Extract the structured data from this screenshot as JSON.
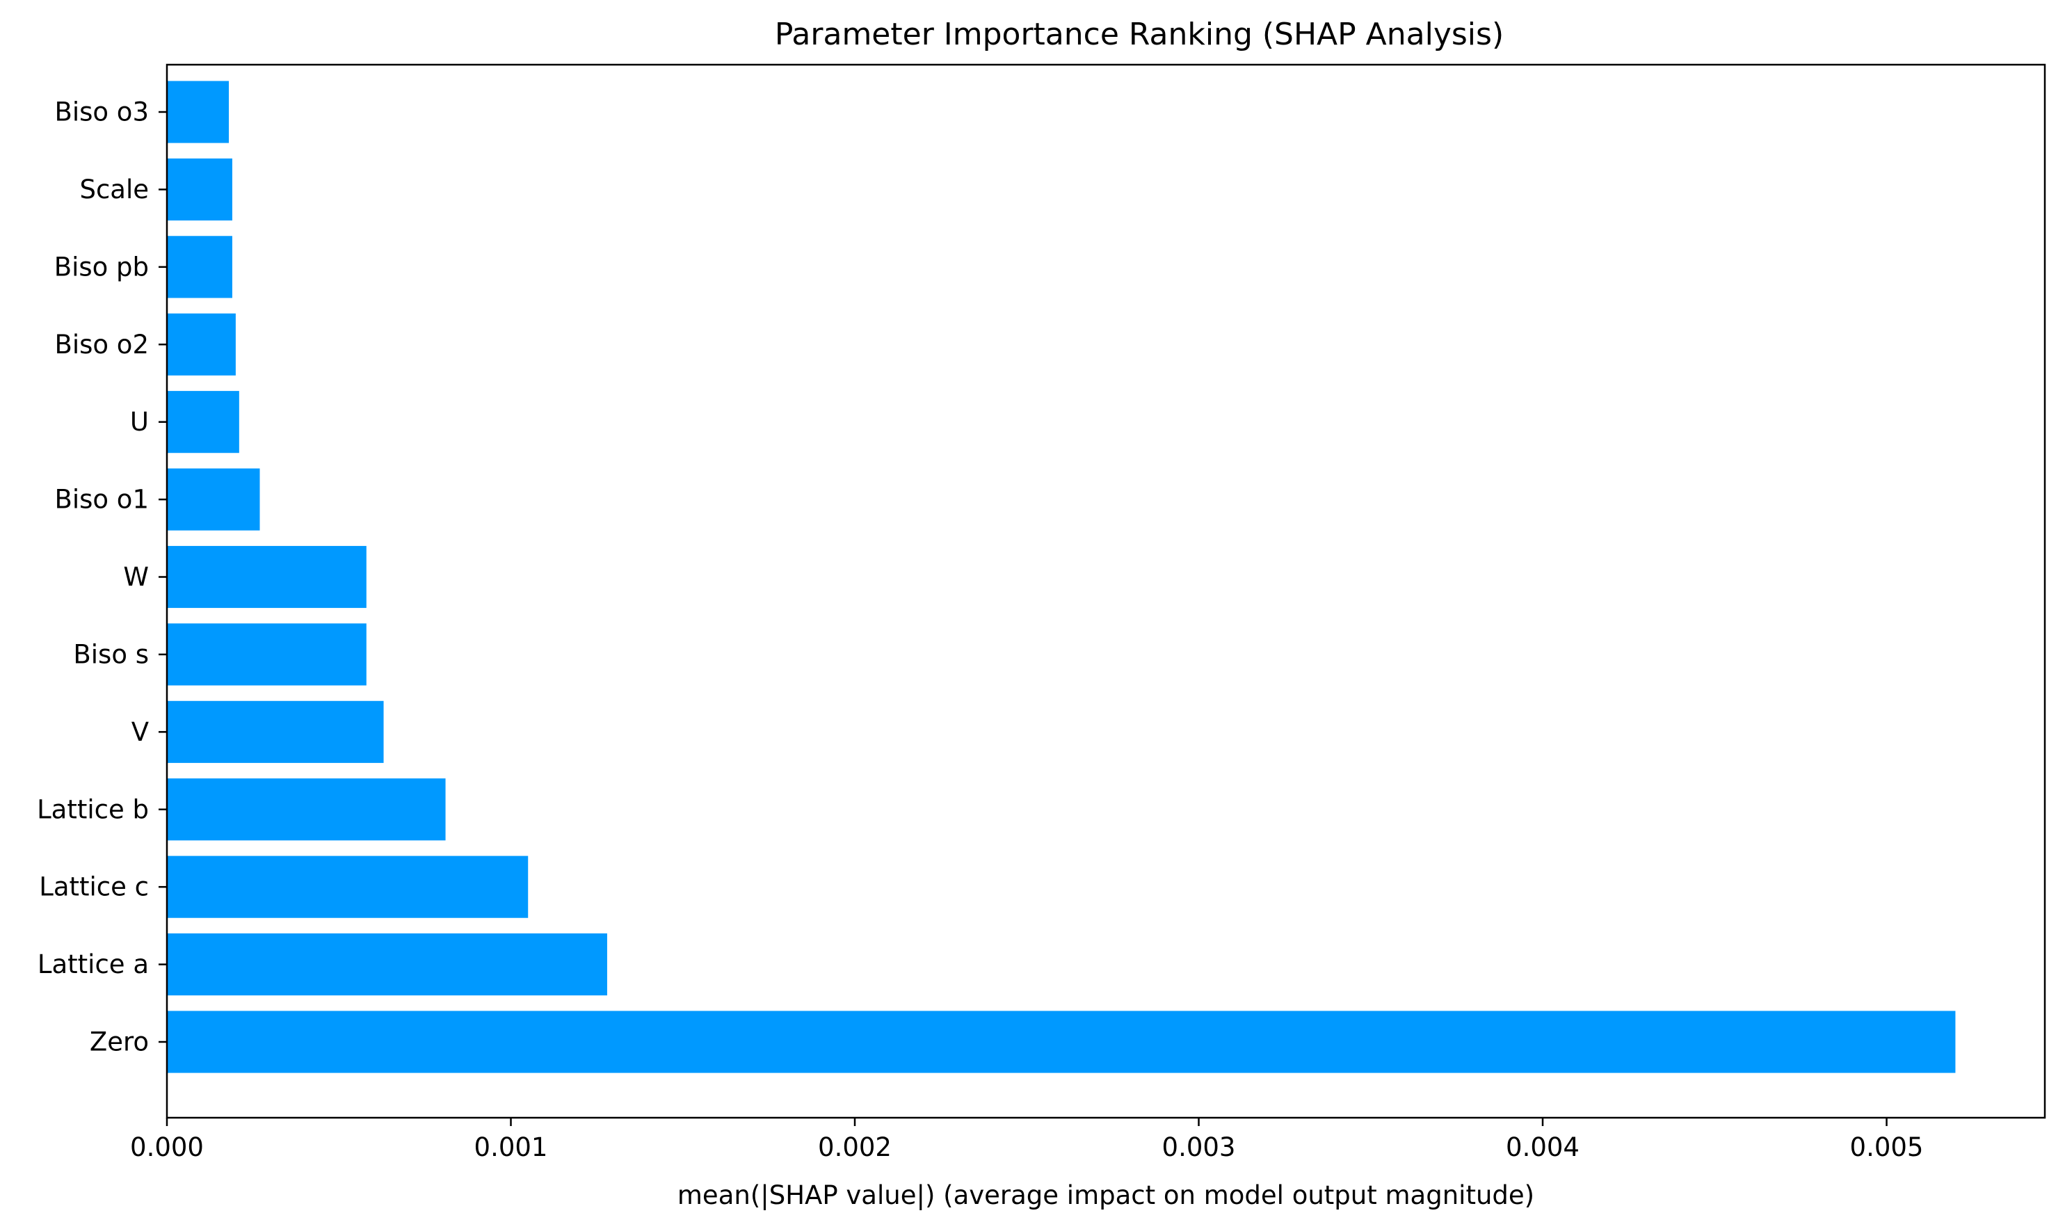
{
  "chart_data": {
    "type": "bar",
    "orientation": "horizontal",
    "title": "Parameter Importance Ranking (SHAP Analysis)",
    "xlabel": "mean(|SHAP value|) (average impact on model output magnitude)",
    "ylabel": "",
    "xlim": [
      0,
      0.00546
    ],
    "xticks": [
      0.0,
      0.001,
      0.002,
      0.003,
      0.004,
      0.005
    ],
    "xtick_labels": [
      "0.000",
      "0.001",
      "0.002",
      "0.003",
      "0.004",
      "0.005"
    ],
    "categories": [
      "Zero",
      "Lattice a",
      "Lattice c",
      "Lattice b",
      "V",
      "Biso s",
      "W",
      "Biso o1",
      "U",
      "Biso o2",
      "Biso pb",
      "Scale",
      "Biso o3"
    ],
    "values": [
      0.0052,
      0.00128,
      0.00105,
      0.00081,
      0.00063,
      0.00058,
      0.00058,
      0.00027,
      0.00021,
      0.0002,
      0.00019,
      0.00019,
      0.00018
    ],
    "bar_color": "#0099ff",
    "grid": false,
    "legend": "none"
  }
}
